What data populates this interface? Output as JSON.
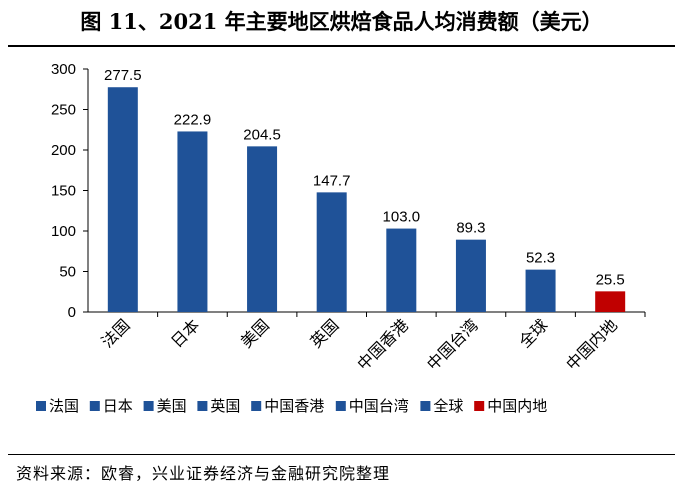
{
  "header": {
    "title": "图 11、2021 年主要地区烘焙食品人均消费额（美元）"
  },
  "footer": {
    "source": "资料来源：欧睿，兴业证券经济与金融研究院整理"
  },
  "colors": {
    "primary": "#1F5298",
    "highlight": "#C00000"
  },
  "chart_data": {
    "type": "bar",
    "title": "",
    "xlabel": "",
    "ylabel": "",
    "ylim": [
      0,
      300
    ],
    "yticks": [
      0,
      50,
      100,
      150,
      200,
      250,
      300
    ],
    "grid": false,
    "legend_position": "bottom",
    "categories": [
      "法国",
      "日本",
      "美国",
      "英国",
      "中国香港",
      "中国台湾",
      "全球",
      "中国内地"
    ],
    "values": [
      277.5,
      222.9,
      204.5,
      147.7,
      103.0,
      89.3,
      52.3,
      25.5
    ],
    "value_labels": [
      "277.5",
      "222.9",
      "204.5",
      "147.7",
      "103.0",
      "89.3",
      "52.3",
      "25.5"
    ],
    "highlight_index": 7
  }
}
